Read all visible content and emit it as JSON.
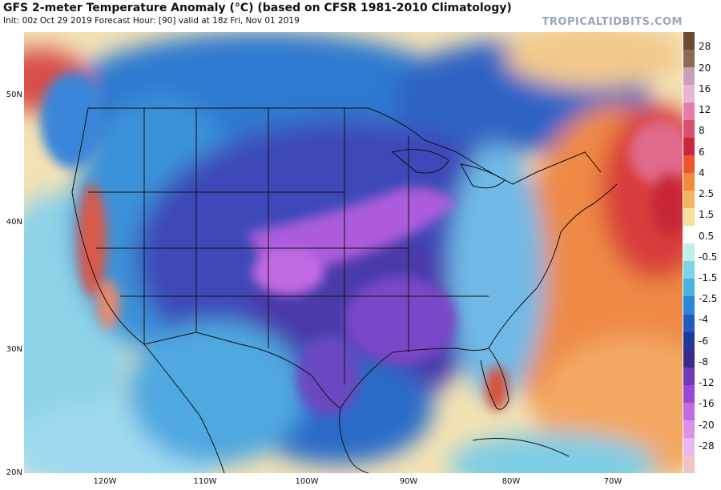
{
  "header": {
    "title": "GFS 2-meter Temperature Anomaly (°C) (based on CFSR 1981-2010 Climatology)",
    "subtitle": "Init: 00z Oct 29 2019   Forecast Hour: [90]   valid at 18z Fri, Nov 01 2019",
    "brand": "TROPICALTIDBITS.COM"
  },
  "map": {
    "lat_labels": [
      "50N",
      "40N",
      "30N",
      "20N"
    ],
    "lon_labels": [
      "120W",
      "110W",
      "100W",
      "90W",
      "80W",
      "70W"
    ]
  },
  "colorbar": {
    "labels": [
      "28",
      "20",
      "16",
      "12",
      "8",
      "6",
      "4",
      "2.5",
      "1.5",
      "0.5",
      "-0.5",
      "-1.5",
      "-2.5",
      "-4",
      "-6",
      "-8",
      "-12",
      "-16",
      "-20",
      "-28"
    ],
    "colors": [
      "#6b4a38",
      "#8c6a58",
      "#c9a0b8",
      "#e6b6d8",
      "#e77ea8",
      "#d8506a",
      "#c8283a",
      "#e8552f",
      "#f08a3c",
      "#f5b45e",
      "#f7df9c",
      "#ffffff",
      "#bfeeed",
      "#7ed4e6",
      "#47b3e2",
      "#2e86d6",
      "#1f5cc0",
      "#1c3a9c",
      "#3a2a8c",
      "#6d3aba",
      "#9a48d4",
      "#c46ae0",
      "#dd92ea",
      "#eab8f0",
      "#f4c2c2"
    ]
  }
}
